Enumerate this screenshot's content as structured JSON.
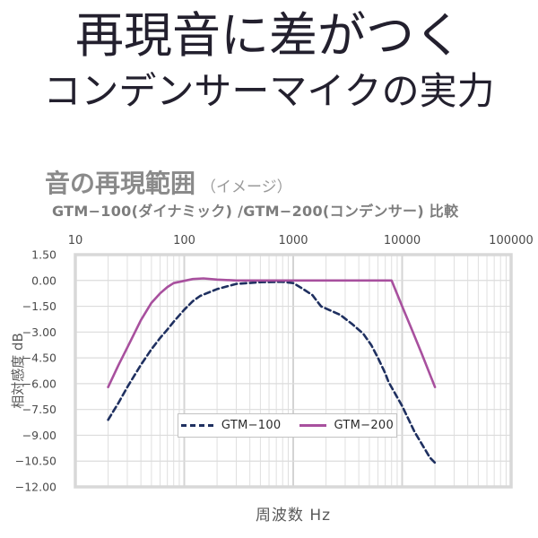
{
  "header": {
    "title_line1": "再現音に差がつく",
    "title_line2": "コンデンサーマイクの実力"
  },
  "section": {
    "heading": "音の再現範囲",
    "heading_note": "（イメージ）",
    "comparison": "GTM−100(ダイナミック) /GTM−200(コンデンサー) 比較"
  },
  "chart_data": {
    "type": "line",
    "title": "音の再現範囲（イメージ）",
    "subtitle": "GTM−100(ダイナミック) /GTM−200(コンデンサー) 比較",
    "grid": true,
    "x_axis": {
      "label": "周波数  Hz",
      "scale": "log",
      "min": 10,
      "max": 100000,
      "tick_values": [
        10,
        100,
        1000,
        10000,
        100000
      ],
      "tick_labels": [
        "10",
        "100",
        "1000",
        "10000",
        "100000"
      ]
    },
    "y_axis": {
      "label": "相対感度  dB",
      "min": -12.0,
      "max": 1.5,
      "tick_step": 1.5,
      "tick_values": [
        1.5,
        0,
        -1.5,
        -3,
        -4.5,
        -6,
        -7.5,
        -9,
        -10.5,
        -12
      ],
      "tick_labels": [
        "1.50",
        "0.00",
        "−1.50",
        "−3.00",
        "−4.50",
        "−6.00",
        "−7.50",
        "−9.00",
        "−10.50",
        "−12.00"
      ]
    },
    "legend": {
      "position": "inside-bottom-center",
      "items": [
        "GTM−100",
        "GTM−200"
      ]
    },
    "series": [
      {
        "name": "GTM−100",
        "description": "ダイナミック",
        "style": "dashed",
        "color": "#1f3060",
        "points": [
          [
            20,
            -8.1
          ],
          [
            25,
            -7.1
          ],
          [
            30,
            -6.2
          ],
          [
            40,
            -4.9
          ],
          [
            50,
            -4.0
          ],
          [
            60,
            -3.35
          ],
          [
            70,
            -2.85
          ],
          [
            80,
            -2.4
          ],
          [
            100,
            -1.7
          ],
          [
            120,
            -1.2
          ],
          [
            140,
            -0.9
          ],
          [
            200,
            -0.5
          ],
          [
            300,
            -0.2
          ],
          [
            500,
            -0.1
          ],
          [
            800,
            -0.08
          ],
          [
            1000,
            -0.15
          ],
          [
            1200,
            -0.45
          ],
          [
            1500,
            -0.85
          ],
          [
            1800,
            -1.5
          ],
          [
            2300,
            -1.8
          ],
          [
            2700,
            -2.0
          ],
          [
            3500,
            -2.55
          ],
          [
            4400,
            -3.1
          ],
          [
            5200,
            -3.75
          ],
          [
            6000,
            -4.5
          ],
          [
            7000,
            -5.4
          ],
          [
            7500,
            -5.9
          ],
          [
            10000,
            -7.3
          ],
          [
            13000,
            -8.8
          ],
          [
            18000,
            -10.3
          ],
          [
            20000,
            -10.6
          ]
        ]
      },
      {
        "name": "GTM−200",
        "description": "コンデンサー",
        "style": "solid",
        "color": "#a8509e",
        "points": [
          [
            20,
            -6.2
          ],
          [
            25,
            -4.9
          ],
          [
            30,
            -3.9
          ],
          [
            40,
            -2.3
          ],
          [
            50,
            -1.3
          ],
          [
            60,
            -0.75
          ],
          [
            70,
            -0.38
          ],
          [
            80,
            -0.15
          ],
          [
            100,
            -0.02
          ],
          [
            120,
            0.08
          ],
          [
            150,
            0.12
          ],
          [
            200,
            0.05
          ],
          [
            300,
            0
          ],
          [
            500,
            0
          ],
          [
            1000,
            0
          ],
          [
            2000,
            0
          ],
          [
            4000,
            0
          ],
          [
            6000,
            0
          ],
          [
            8000,
            0
          ],
          [
            10000,
            -1.5
          ],
          [
            12000,
            -2.7
          ],
          [
            15000,
            -4.2
          ],
          [
            20000,
            -6.2
          ]
        ]
      }
    ]
  },
  "colors": {
    "gtm100_navy": "#1f3060",
    "gtm200_purple": "#a8509e",
    "grid_minor": "#dfdfdf",
    "grid_major": "#d4d4d4",
    "plot_border": "#d8d8d8",
    "tick_text": "#4a4a4a",
    "heading_gray": "#8a8a8a",
    "title_text": "#23202e"
  }
}
